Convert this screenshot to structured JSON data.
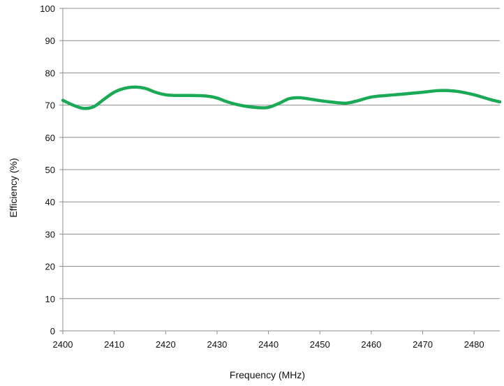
{
  "chart_data": {
    "type": "line",
    "title": "",
    "xlabel": "Frequency (MHz)",
    "ylabel": "Efficiency (%)",
    "xlim": [
      2400,
      2485
    ],
    "ylim": [
      0,
      100
    ],
    "x_ticks": [
      2400,
      2410,
      2420,
      2430,
      2440,
      2450,
      2460,
      2470,
      2480
    ],
    "y_ticks": [
      0,
      10,
      20,
      30,
      40,
      50,
      60,
      70,
      80,
      90,
      100
    ],
    "grid": "horizontal",
    "legend": "none",
    "series": [
      {
        "color": "#1aaa55",
        "x": [
          2400,
          2402,
          2404,
          2406,
          2408,
          2410,
          2412,
          2414,
          2416,
          2418,
          2420,
          2422,
          2425,
          2428,
          2430,
          2432,
          2435,
          2438,
          2440,
          2442,
          2444,
          2446,
          2448,
          2450,
          2452,
          2455,
          2457,
          2460,
          2463,
          2466,
          2470,
          2473,
          2475,
          2477,
          2480,
          2483,
          2485
        ],
        "y": [
          71.5,
          70.0,
          69.0,
          69.5,
          71.8,
          74.0,
          75.2,
          75.6,
          75.2,
          74.0,
          73.2,
          73.0,
          73.0,
          72.8,
          72.2,
          71.0,
          69.8,
          69.2,
          69.3,
          70.5,
          72.0,
          72.3,
          71.9,
          71.4,
          71.0,
          70.6,
          71.2,
          72.5,
          73.0,
          73.4,
          74.0,
          74.5,
          74.5,
          74.2,
          73.2,
          71.8,
          71.0
        ]
      }
    ]
  }
}
